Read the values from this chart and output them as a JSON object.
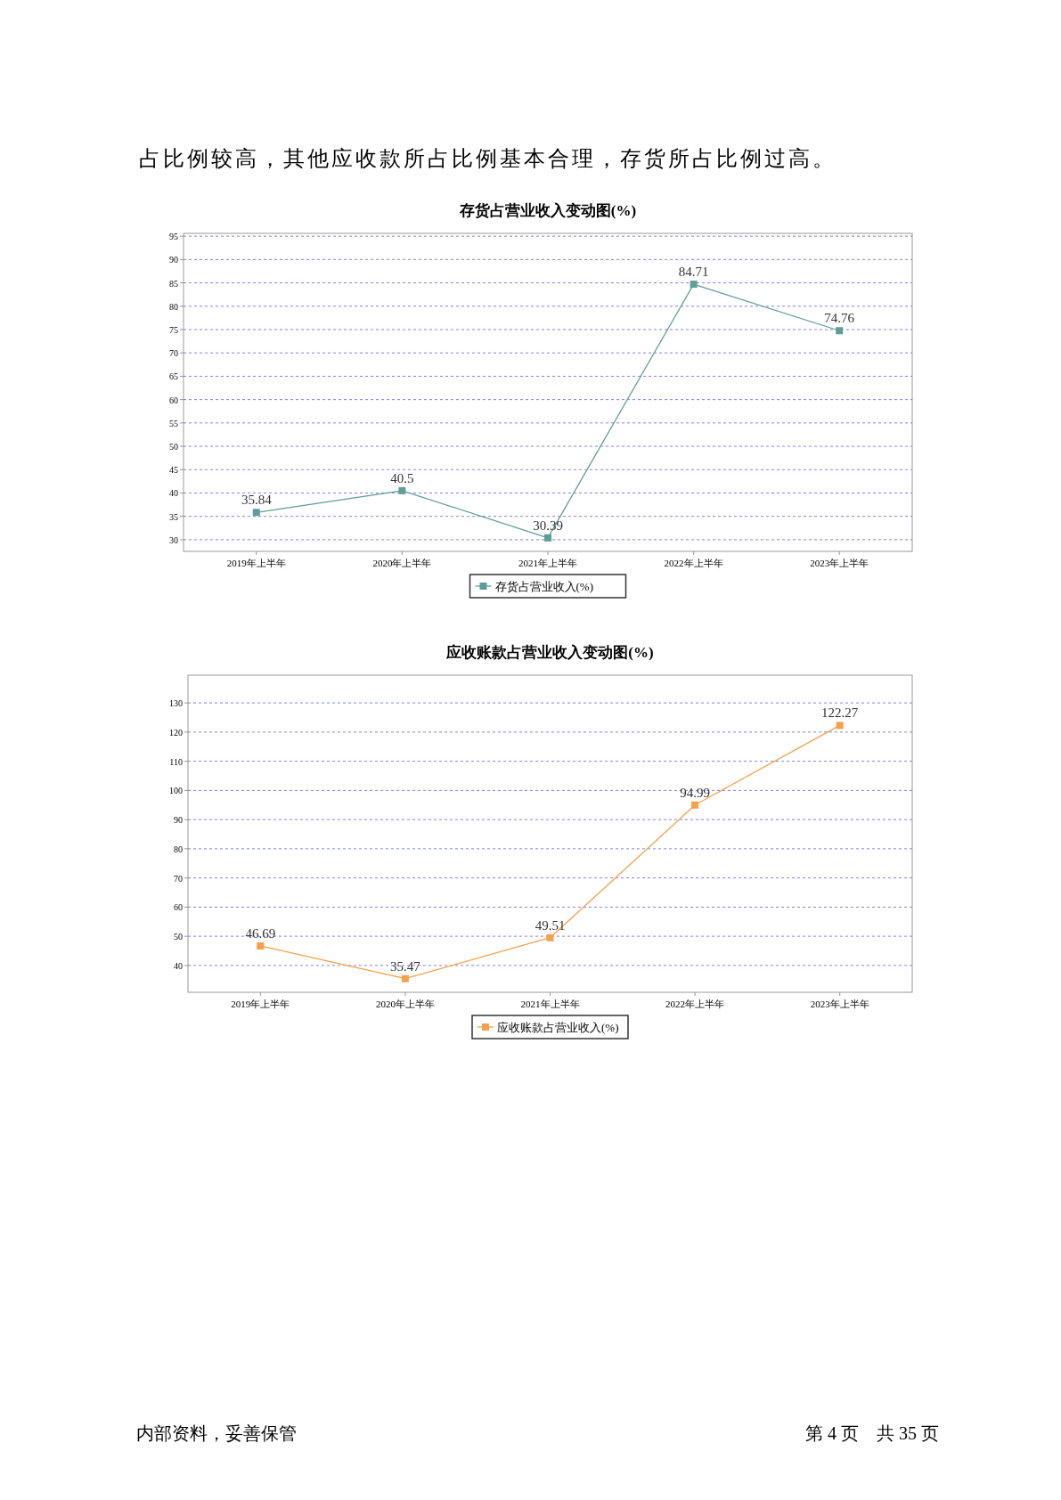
{
  "chart_data": [
    {
      "type": "line",
      "title": "存货占营业收入变动图(%)",
      "categories": [
        "2019年上半年",
        "2020年上半年",
        "2021年上半年",
        "2022年上半年",
        "2023年上半年"
      ],
      "series": [
        {
          "name": "存货占营业收入(%)",
          "color": "#5f9e96",
          "values": [
            35.84,
            40.5,
            30.39,
            84.71,
            74.76
          ]
        }
      ],
      "ylim": [
        27.5,
        95.6
      ],
      "yticks": [
        30,
        35,
        40,
        45,
        50,
        55,
        60,
        65,
        70,
        75,
        80,
        85,
        90,
        95
      ],
      "grid": "y",
      "legend": "bottom",
      "marker": "square",
      "line_style": "solid",
      "data_labels": true,
      "annotations": [
        "占比例较高，其他应收款所占比例基本合理，存货所占比例过高。"
      ]
    },
    {
      "type": "line",
      "title": "应收账款占营业收入变动图(%)",
      "categories": [
        "2019年上半年",
        "2020年上半年",
        "2021年上半年",
        "2022年上半年",
        "2023年上半年"
      ],
      "series": [
        {
          "name": "应收账款占营业收入(%)",
          "color": "#f5a04a",
          "values": [
            46.69,
            35.47,
            49.51,
            94.99,
            122.27
          ]
        }
      ],
      "ylim": [
        30.8,
        139.5
      ],
      "yticks": [
        40,
        50,
        60,
        70,
        80,
        90,
        100,
        110,
        120,
        130
      ],
      "grid": "y",
      "legend": "bottom",
      "marker": "square",
      "line_style": "solid",
      "data_labels": true,
      "annotations": [
        "内部资料，妥善保管",
        "第 4 页　共 35 页"
      ]
    }
  ]
}
